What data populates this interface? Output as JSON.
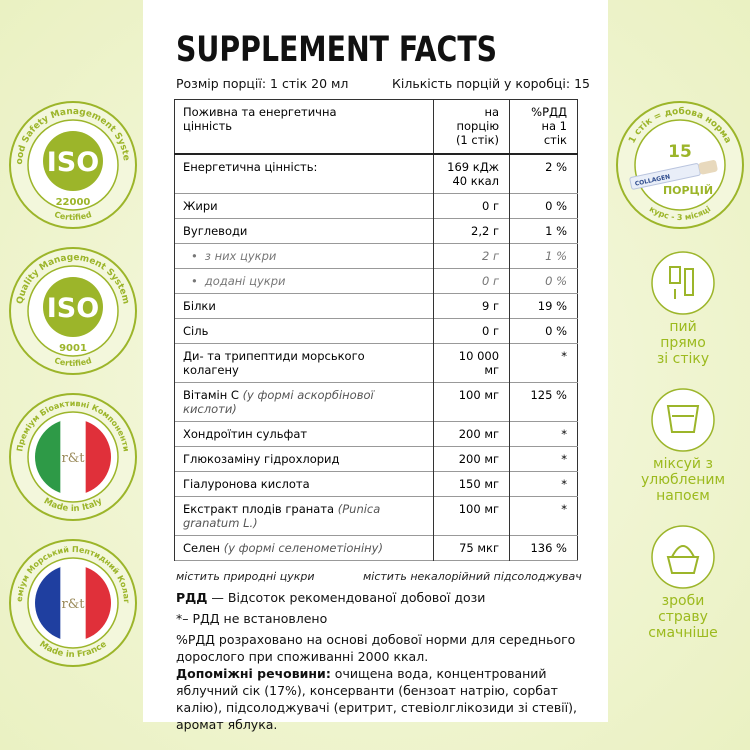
{
  "header": {
    "title": "SUPPLEMENT FACTS",
    "serving_size": "Розмір порції: 1 стік 20 мл",
    "servings": "Кількість порцій у коробці: 15"
  },
  "table": {
    "columns": [
      "Поживна та енергетична\nцінність",
      "на порцію\n(1 стік)",
      "%РДД\nна 1 стік"
    ],
    "rows": [
      {
        "name": "Енергетична цінність:",
        "amount": "169 кДж\n40 ккал",
        "percent": "2 %"
      },
      {
        "name": "Жири",
        "amount": "0 г",
        "percent": "0 %"
      },
      {
        "name": "Вуглеводи",
        "amount": "2,2 г",
        "percent": "1 %"
      },
      {
        "name": "з них цукри",
        "amount": "2 г",
        "percent": "1 %",
        "sub": true
      },
      {
        "name": "додані цукри",
        "amount": "0 г",
        "percent": "0 %",
        "sub": true
      },
      {
        "name": "Білки",
        "amount": "9 г",
        "percent": "19 %"
      },
      {
        "name": "Сіль",
        "amount": "0 г",
        "percent": "0 %"
      },
      {
        "name": "Ди- та трипептиди морського колагену",
        "amount": "10 000 мг",
        "percent": "*"
      },
      {
        "name": "Вітамін С",
        "note": "(у формі аскорбінової кислоти)",
        "amount": "100 мг",
        "percent": "125 %"
      },
      {
        "name": "Хондроїтин сульфат",
        "amount": "200 мг",
        "percent": "*"
      },
      {
        "name": "Глюкозаміну гідрохлорид",
        "amount": "200 мг",
        "percent": "*"
      },
      {
        "name": "Гіалуронова кислота",
        "amount": "150 мг",
        "percent": "*"
      },
      {
        "name": "Екстракт плодів граната",
        "note": "(Punica granatum L.)",
        "amount": "100 мг",
        "percent": "*"
      },
      {
        "name": "Селен",
        "note": "(у формі селенометіоніну)",
        "amount": "75 мкг",
        "percent": "136 %"
      }
    ]
  },
  "notes": {
    "natural": "містить природні цукри",
    "sweetener": "містить некалорійний підсолоджувач",
    "rdd_term": "РДД",
    "rdd_def": " — Відсоток рекомендованої добової дози",
    "not_set": "*– РДД не встановлено",
    "calc": "%РДД розраховано на основі добової норми для середнього дорослого при споживанні 2000 ккал.",
    "excipients_label": "Допоміжні речовини:",
    "excipients": " очищена вода, концентрований яблучний сік (17%), консерванти (бензоат натрію, сорбат калію), підсолоджувачі (еритрит, стевіолглікозиди зі стевії), аромат яблука."
  },
  "badges": [
    {
      "kind": "iso",
      "arc": "Food Safety Management System",
      "center": "ISO",
      "code": "22000",
      "bottom": "Certified"
    },
    {
      "kind": "iso",
      "arc": "Quality Management System",
      "center": "ISO",
      "code": "9001",
      "bottom": "Certified"
    },
    {
      "kind": "flag",
      "arc": "Преміум Біоактивні Компоненти",
      "center": "r&t",
      "bottom": "Made in Italy",
      "colors": [
        "#2e9a47",
        "#ffffff",
        "#e0303a"
      ]
    },
    {
      "kind": "flag",
      "arc": "Преміум Морський Пептидний Колаген",
      "center": "r&t",
      "bottom": "Made in France",
      "colors": [
        "#1f3fa0",
        "#ffffff",
        "#e0303a"
      ]
    }
  ],
  "portion_badge": {
    "arc": "1 стік = добова норма",
    "count": "15",
    "unit": "ПОРЦІЙ",
    "bottom": "курс - 3 місяці",
    "stick": "COLLAGEN"
  },
  "tips": [
    "пий\nпрямо\nзі стіку",
    "міксуй з\nулюбленим\nнапоєм",
    "зроби\nстраву\nсмачніше"
  ]
}
